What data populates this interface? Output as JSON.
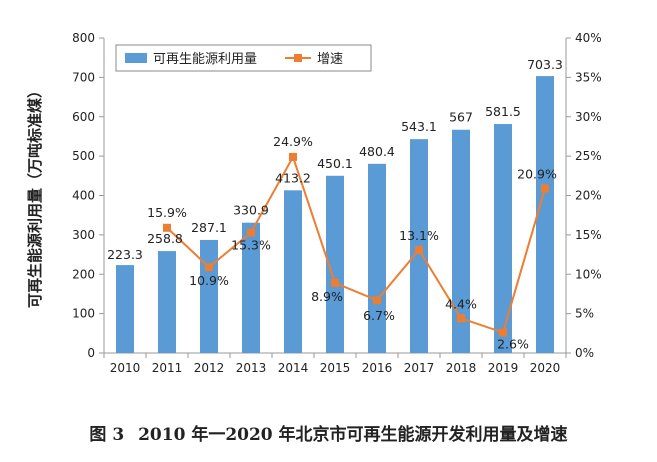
{
  "chart_data": {
    "type": "bar",
    "categories": [
      "2010",
      "2011",
      "2012",
      "2013",
      "2014",
      "2015",
      "2016",
      "2017",
      "2018",
      "2019",
      "2020"
    ],
    "series": [
      {
        "name": "可再生能源利用量",
        "type": "bar",
        "axis": "left",
        "color": "#5b9bd5",
        "values": [
          223.3,
          258.8,
          287.1,
          330.9,
          413.2,
          450.1,
          480.4,
          543.1,
          567,
          581.5,
          703.3
        ],
        "labels": [
          "223.3",
          "258.8",
          "287.1",
          "330.9",
          "413.2",
          "450.1",
          "480.4",
          "543.1",
          "567",
          "581.5",
          "703.3"
        ]
      },
      {
        "name": "增速",
        "type": "line",
        "axis": "right",
        "color": "#ed7d31",
        "values": [
          null,
          15.9,
          10.9,
          15.3,
          24.9,
          8.9,
          6.7,
          13.1,
          4.4,
          2.6,
          20.9
        ],
        "labels": [
          "",
          "15.9%",
          "10.9%",
          "15.3%",
          "24.9%",
          "8.9%",
          "6.7%",
          "13.1%",
          "4.4%",
          "2.6%",
          "20.9%"
        ]
      }
    ],
    "ylabel": "可再生能源利用量（万吨标准煤）",
    "ylim": [
      0,
      800
    ],
    "yticks": [
      "0",
      "100",
      "200",
      "300",
      "400",
      "500",
      "600",
      "700",
      "800"
    ],
    "y2lim": [
      0,
      40
    ],
    "y2ticks": [
      "0%",
      "5%",
      "10%",
      "15%",
      "20%",
      "25%",
      "30%",
      "35%",
      "40%"
    ],
    "legend": "top-left",
    "grid": false
  },
  "caption": {
    "figure_no": "图 3",
    "text": "2010 年一2020 年北京市可再生能源开发利用量及增速"
  }
}
